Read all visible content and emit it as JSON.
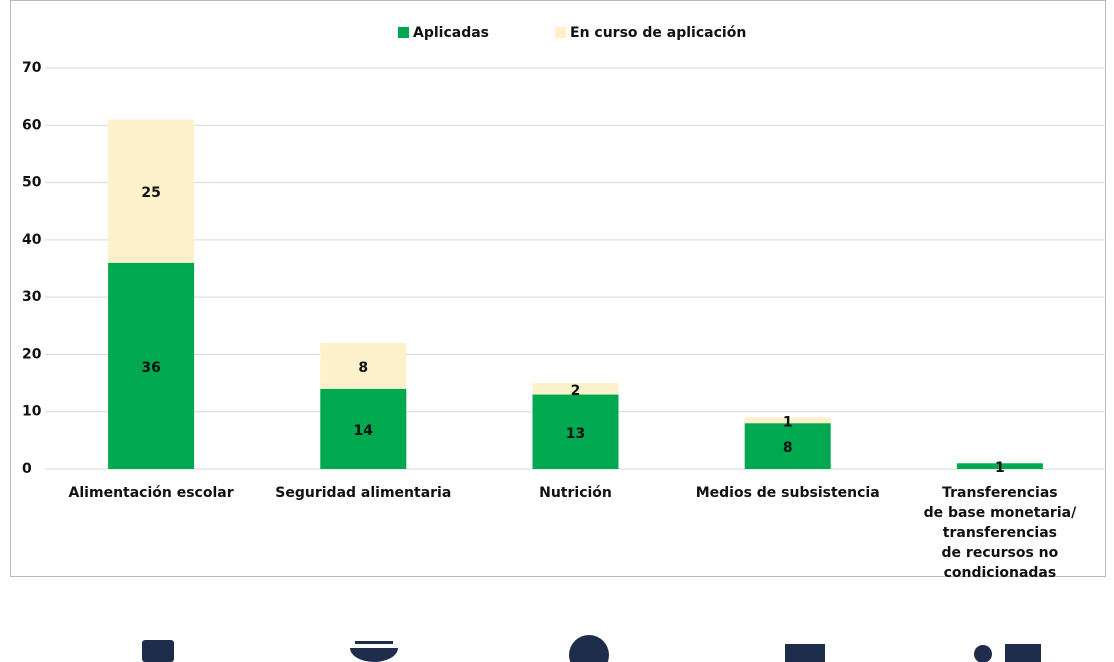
{
  "chart_data": {
    "type": "stacked_bar",
    "categories": [
      "Alimentación escolar",
      "Seguridad alimentaria",
      "Nutrición",
      "Medios de subsistencia",
      "Transferencias\nde base monetaria/\ntransferencias\nde recursos no\ncondicionadas"
    ],
    "series": [
      {
        "name": "Aplicadas",
        "color": "#00a84f",
        "values": [
          36,
          14,
          13,
          8,
          1
        ]
      },
      {
        "name": "En curso de aplicación",
        "color": "#fdf1cc",
        "values": [
          25,
          8,
          2,
          1,
          null
        ]
      }
    ],
    "ylim": [
      0,
      70
    ],
    "yticks": [
      0,
      10,
      20,
      30,
      40,
      50,
      60,
      70
    ],
    "grid": true,
    "legend": "top"
  }
}
